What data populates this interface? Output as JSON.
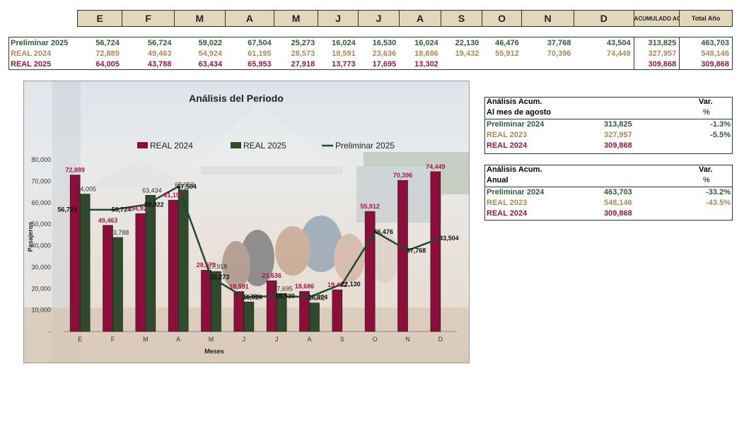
{
  "top_table": {
    "months": [
      "E",
      "F",
      "M",
      "A",
      "M",
      "J",
      "J",
      "A",
      "S",
      "O",
      "N",
      "D"
    ],
    "acumulado_header": "ACUMULADO AGOSTO",
    "total_header": "Total Año",
    "rows": [
      {
        "label": "Preliminar 2025",
        "values": [
          "56,724",
          "56,724",
          "59,022",
          "67,504",
          "25,273",
          "16,024",
          "16,530",
          "16,024",
          "22,130",
          "46,476",
          "37,768",
          "43,504"
        ],
        "acumulado": "313,825",
        "total": "463,703",
        "color": "#2e5b34"
      },
      {
        "label": "REAL 2024",
        "values": [
          "72,889",
          "49,463",
          "54,924",
          "61,195",
          "28,573",
          "18,591",
          "23,636",
          "18,686",
          "19,432",
          "55,912",
          "70,396",
          "74,449"
        ],
        "acumulado": "327,957",
        "total": "548,146",
        "color": "#a88a56"
      },
      {
        "label": "REAL 2025",
        "values": [
          "64,005",
          "43,788",
          "63,434",
          "65,953",
          "27,918",
          "13,773",
          "17,695",
          "13,302",
          "",
          "",
          "",
          ""
        ],
        "acumulado": "309,868",
        "total": "309,868",
        "color": "#8b1a42"
      }
    ]
  },
  "chart_data": {
    "type": "bar",
    "title": "Análisis del Periodo",
    "xlabel": "Meses",
    "ylabel": "Pasajeros",
    "categories": [
      "E",
      "F",
      "M",
      "A",
      "M",
      "J",
      "J",
      "A",
      "S",
      "O",
      "N",
      "D"
    ],
    "ylim": [
      0,
      80000
    ],
    "y_ticks": [
      "-",
      "10,000",
      "20,000",
      "30,000",
      "40,000",
      "50,000",
      "60,000",
      "70,000",
      "80,000"
    ],
    "legend_position": "top",
    "series": [
      {
        "name": "REAL 2024",
        "kind": "bar",
        "color": "#8b0f3a",
        "values": [
          72889,
          49463,
          54924,
          61195,
          28573,
          18591,
          23636,
          18686,
          19432,
          55912,
          70396,
          74449
        ],
        "labels": [
          "72,889",
          "49,463",
          "54,924",
          "61,195",
          "28,573",
          "18,591",
          "23,636",
          "18,686",
          "19,432",
          "55,912",
          "70,396",
          "74,449"
        ]
      },
      {
        "name": "REAL 2025",
        "kind": "bar",
        "color": "#2f4a2c",
        "values": [
          64005,
          43788,
          63434,
          65953,
          27918,
          13773,
          17695,
          13302,
          null,
          null,
          null,
          null
        ],
        "labels": [
          "64,005",
          "43,788",
          "63,434",
          "65,953",
          "27,918",
          "13,773",
          "17,695",
          "13,302",
          "",
          "",
          "",
          ""
        ]
      },
      {
        "name": "Preliminar 2025",
        "kind": "line",
        "color": "#1f4a30",
        "values": [
          56724,
          56724,
          59022,
          67504,
          25273,
          16024,
          16530,
          16024,
          22130,
          46476,
          37768,
          43504
        ],
        "labels": [
          "56,724",
          "56,724",
          "59,022",
          "67,504",
          "25,273",
          "16,024",
          "16,530",
          "16,024",
          "22,130",
          "46,476",
          "37,768",
          "43,504"
        ]
      }
    ]
  },
  "analysis_aug": {
    "title1": "Análisis  Acum.",
    "title2": "Al mes de agosto",
    "var_header": "Var.",
    "pct_header": "%",
    "rows": [
      {
        "label": "Preliminar 2024",
        "value": "313,825",
        "var": "-1.3%",
        "color": "#2e5b34"
      },
      {
        "label": "REAL 2023",
        "value": "327,957",
        "var": "-5.5%",
        "color": "#a88a56"
      },
      {
        "label": "REAL 2024",
        "value": "309,868",
        "var": "",
        "color": "#8b1a42"
      }
    ]
  },
  "analysis_year": {
    "title1": "Análisis  Acum.",
    "title2": "Anual",
    "var_header": "Var.",
    "pct_header": "%",
    "rows": [
      {
        "label": "Preliminar 2024",
        "value": "463,703",
        "var": "-33.2%",
        "color": "#2e5b34"
      },
      {
        "label": "REAL 2023",
        "value": "548,146",
        "var": "-43.5%",
        "color": "#a88a56"
      },
      {
        "label": "REAL 2024",
        "value": "309,868",
        "var": "",
        "color": "#8b1a42"
      }
    ]
  }
}
